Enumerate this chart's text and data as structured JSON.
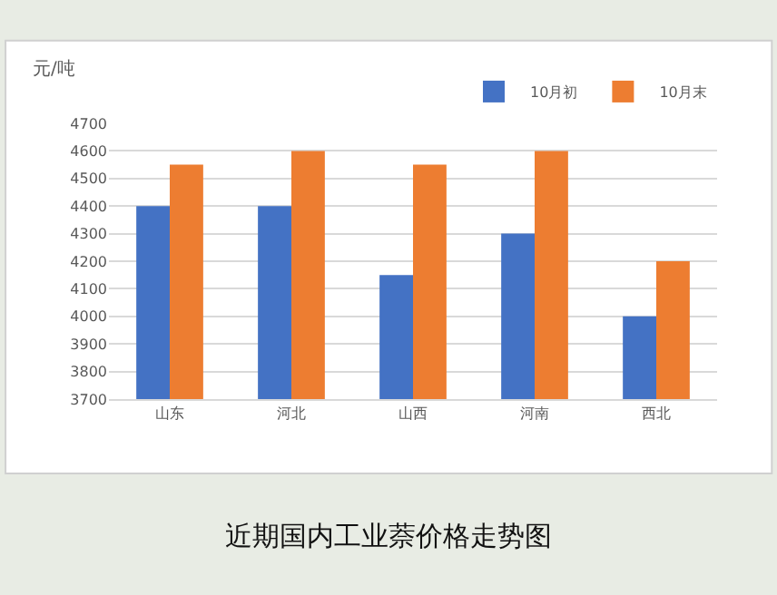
{
  "chart_data": {
    "type": "bar",
    "title": "近期国内工业萘价格走势图",
    "ylabel": "元/吨",
    "categories": [
      "山东",
      "河北",
      "山西",
      "河南",
      "西北"
    ],
    "series": [
      {
        "name": "10月初",
        "color": "#4472c4",
        "values": [
          4400,
          4400,
          4150,
          4300,
          4000
        ]
      },
      {
        "name": "10月末",
        "color": "#ed7d31",
        "values": [
          4550,
          4600,
          4550,
          4600,
          4200
        ]
      }
    ],
    "ylim": [
      3700,
      4700
    ],
    "yticks": [
      3700,
      3800,
      3900,
      4000,
      4100,
      4200,
      4300,
      4400,
      4500,
      4600,
      4700
    ],
    "grid": "y",
    "legend": "top right"
  }
}
